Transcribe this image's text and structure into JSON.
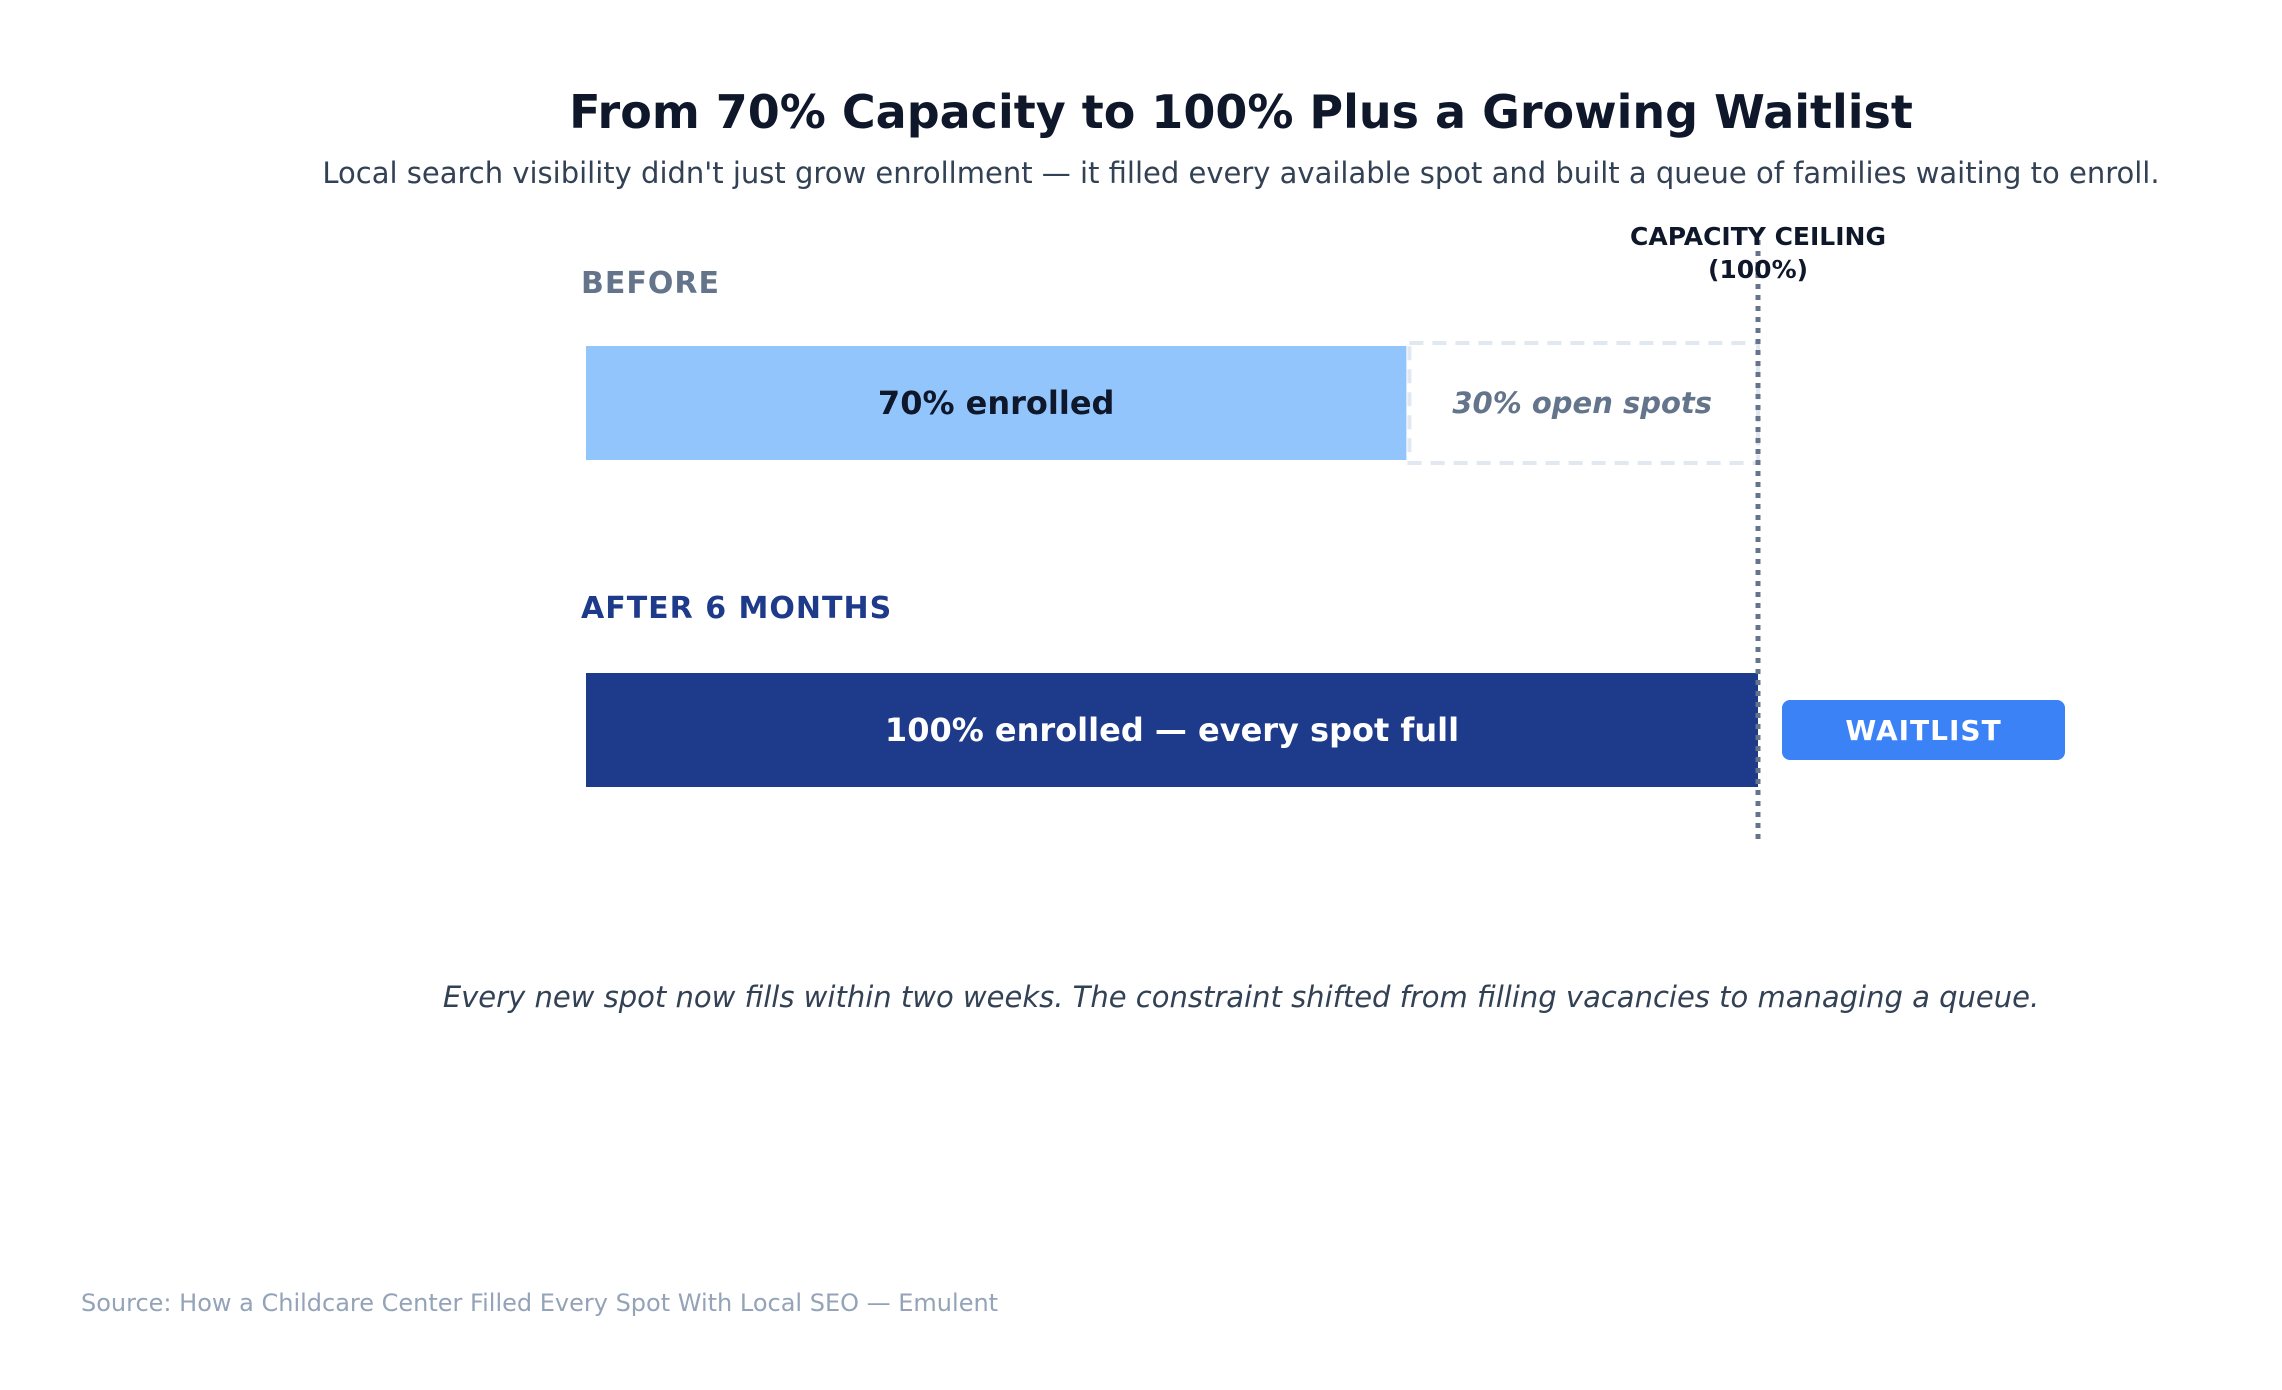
{
  "colors": {
    "before_fill": "#93c5fd",
    "after_fill": "#1e3a8a",
    "open_outline": "#e2e8f0",
    "ceiling_line": "#64748b",
    "waitlist_badge": "#3b82f6",
    "before_label": "#64748b",
    "after_label": "#1e3a8a",
    "dark_text": "#0f172a",
    "white_text": "#ffffff"
  },
  "chart_data": {
    "type": "bar",
    "orientation": "horizontal",
    "title": "From 70% Capacity to 100% Plus a Growing Waitlist",
    "subtitle": "Local search visibility didn't just grow enrollment — it filled every available spot and built a queue of families waiting to enroll.",
    "unit": "% of capacity",
    "xlim": [
      0,
      100
    ],
    "grid": false,
    "rows": [
      {
        "label": "BEFORE",
        "enrolled": 70,
        "open": 30,
        "enrolled_label": "70% enrolled",
        "open_label": "30% open spots"
      },
      {
        "label": "AFTER 6 MONTHS",
        "enrolled": 100,
        "open": 0,
        "enrolled_label": "100% enrolled — every spot full",
        "badge": "WAITLIST"
      }
    ],
    "reference_line": {
      "value": 100,
      "label_line1": "CAPACITY CEILING",
      "label_line2": "(100%)"
    },
    "annotation": "Every new spot now fills within two weeks. The constraint shifted from filling vacancies to managing a queue.",
    "source": "Source: How a Childcare Center Filled Every Spot With Local SEO — Emulent"
  }
}
